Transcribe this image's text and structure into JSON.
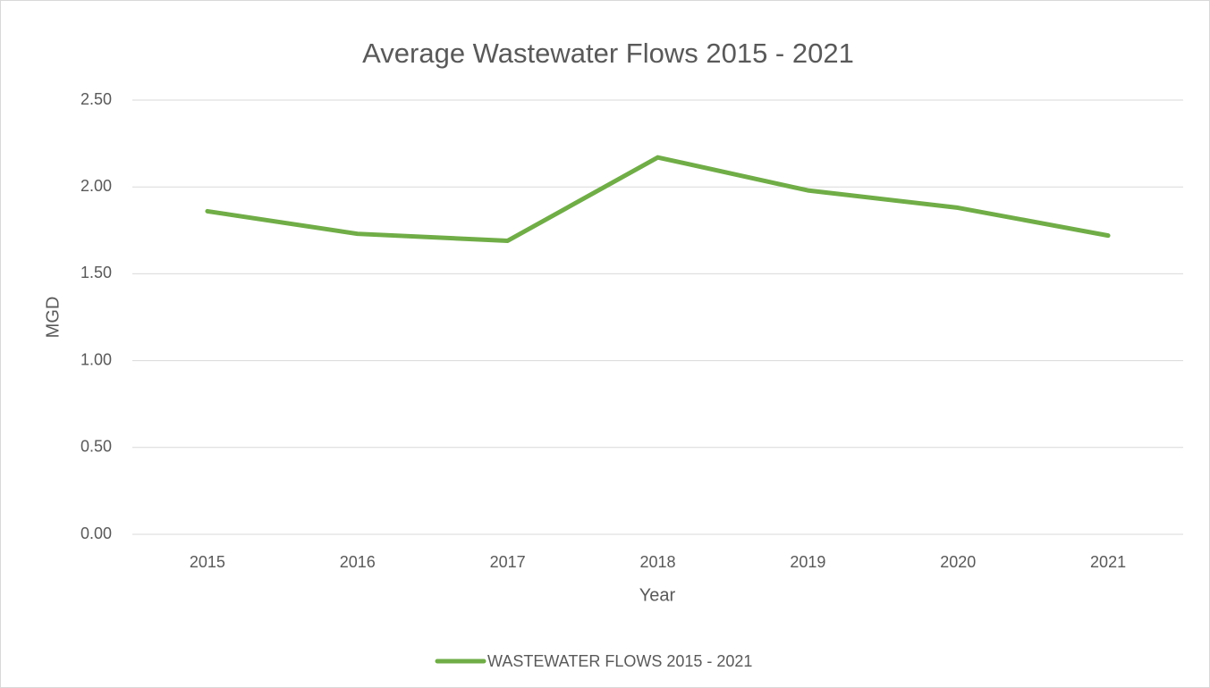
{
  "chart_data": {
    "type": "line",
    "title": "Average Wastewater Flows 2015 - 2021",
    "x_label": "Year",
    "y_label": "MGD",
    "categories": [
      "2015",
      "2016",
      "2017",
      "2018",
      "2019",
      "2020",
      "2021"
    ],
    "series": [
      {
        "name": "WASTEWATER FLOWS 2015 - 2021",
        "color": "#70ad47",
        "values": [
          1.86,
          1.73,
          1.69,
          2.17,
          1.98,
          1.88,
          1.72
        ]
      }
    ],
    "ylim": [
      0,
      2.5
    ],
    "yticks": [
      {
        "value": 0,
        "label": "0.00"
      },
      {
        "value": 0.5,
        "label": "0.50"
      },
      {
        "value": 1,
        "label": "1.00"
      },
      {
        "value": 1.5,
        "label": "1.50"
      },
      {
        "value": 2,
        "label": "2.00"
      },
      {
        "value": 2.5,
        "label": "2.50"
      }
    ],
    "grid": true,
    "legend": "bottom"
  }
}
